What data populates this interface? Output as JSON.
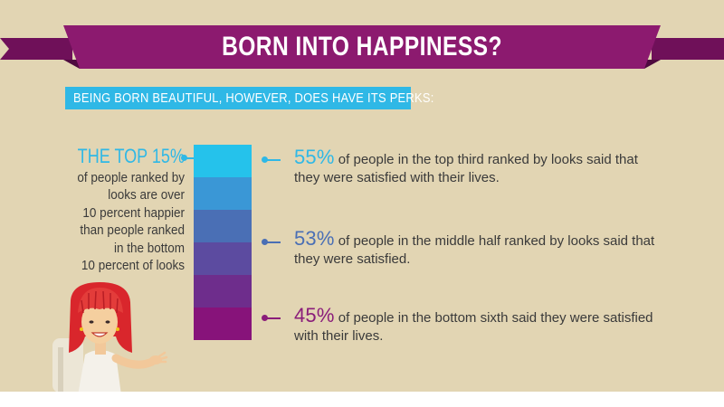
{
  "title": "BORN INTO HAPPINESS?",
  "subtitle": "BEING BORN BEAUTIFUL, HOWEVER, DOES HAVE ITS PERKS:",
  "left": {
    "headline": "THE TOP 15%",
    "body_lines": [
      "of people ranked by",
      "looks are over",
      "10 percent happier",
      "than people ranked",
      "in the bottom",
      "10 percent of looks"
    ]
  },
  "stats": [
    {
      "percent": "55%",
      "line1": " of people in the top third ranked by looks said that",
      "line2": "they were satisfied with their lives.",
      "color": "#2fb8e6"
    },
    {
      "percent": "53%",
      "line1": " of people in the middle half ranked by looks said that",
      "line2": "they were satisfied.",
      "color": "#4a6fb5"
    },
    {
      "percent": "45%",
      "line1": " of people in the bottom sixth said they were satisfied",
      "line2": "with their lives.",
      "color": "#8a1d7a"
    }
  ],
  "colors": {
    "background": "#e2d5b3",
    "banner": "#8c1a6f",
    "accent_blue": "#2fb8e6",
    "body_text": "#3a3a3a"
  },
  "bar_colors": [
    "#25c2eb",
    "#3a97d6",
    "#4a6fb5",
    "#5c4ba0",
    "#6e2d8c",
    "#87137a"
  ]
}
